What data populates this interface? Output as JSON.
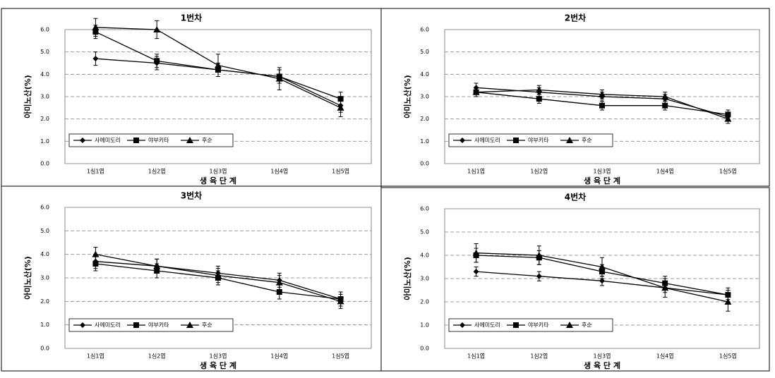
{
  "chart_data": [
    {
      "type": "line",
      "title": "1번차",
      "x_label": "생 육 단 계",
      "y_label": "아미노산(%)",
      "categories": [
        "1심1엽",
        "1심2엽",
        "1심3엽",
        "1심4엽",
        "1심5엽"
      ],
      "ylim": [
        0,
        6
      ],
      "yticks": [
        {
          "value": 0,
          "label": "0.0"
        },
        {
          "value": 1,
          "label": "1.0"
        },
        {
          "value": 2,
          "label": "2.0"
        },
        {
          "value": 3,
          "label": "3.0"
        },
        {
          "value": 4,
          "label": "4.0"
        },
        {
          "value": 5,
          "label": "5.0"
        },
        {
          "value": 6,
          "label": "6.0"
        }
      ],
      "grid": true,
      "series": [
        {
          "name": "사에미도리",
          "color": "#000000",
          "marker": "diamond",
          "values": [
            4.7,
            4.5,
            4.2,
            3.9,
            2.6
          ],
          "errors": [
            0.3,
            0.3,
            0.3,
            0.3,
            0.3
          ]
        },
        {
          "name": "야부키타",
          "color": "#000000",
          "marker": "square",
          "values": [
            5.9,
            4.6,
            4.2,
            3.9,
            2.9
          ],
          "errors": [
            0.3,
            0.3,
            0.3,
            0.3,
            0.3
          ]
        },
        {
          "name": "후순",
          "color": "#000000",
          "marker": "triangle",
          "values": [
            6.1,
            6.0,
            4.4,
            3.8,
            2.5
          ],
          "errors": [
            0.4,
            0.4,
            0.5,
            0.5,
            0.4
          ]
        }
      ]
    },
    {
      "type": "line",
      "title": "2번차",
      "x_label": "생 육 단 계",
      "y_label": "아미노산(%)",
      "categories": [
        "1심1엽",
        "1심2엽",
        "1심3엽",
        "1심4엽",
        "1심5엽"
      ],
      "ylim": [
        0,
        6
      ],
      "yticks": [
        {
          "value": 0,
          "label": "0.0"
        },
        {
          "value": 1,
          "label": "1.0"
        },
        {
          "value": 2,
          "label": "2.0"
        },
        {
          "value": 3,
          "label": "3.0"
        },
        {
          "value": 4,
          "label": "4.0"
        },
        {
          "value": 5,
          "label": "5.0"
        },
        {
          "value": 6,
          "label": "6.0"
        }
      ],
      "grid": true,
      "series": [
        {
          "name": "사에미도리",
          "color": "#000000",
          "marker": "diamond",
          "values": [
            3.4,
            3.2,
            3.0,
            2.9,
            2.1
          ],
          "errors": [
            0.2,
            0.2,
            0.2,
            0.2,
            0.2
          ]
        },
        {
          "name": "야부키타",
          "color": "#000000",
          "marker": "square",
          "values": [
            3.2,
            2.9,
            2.6,
            2.6,
            2.2
          ],
          "errors": [
            0.2,
            0.2,
            0.2,
            0.2,
            0.2
          ]
        },
        {
          "name": "후순",
          "color": "#000000",
          "marker": "triangle",
          "values": [
            3.2,
            3.3,
            3.1,
            3.0,
            2.0
          ],
          "errors": [
            0.2,
            0.2,
            0.2,
            0.2,
            0.2
          ]
        }
      ]
    },
    {
      "type": "line",
      "title": "3번차",
      "x_label": "생 육 단 계",
      "y_label": "아미노산(%)",
      "categories": [
        "1심1엽",
        "1심2엽",
        "1심3엽",
        "1심4엽",
        "1심5엽"
      ],
      "ylim": [
        0,
        6
      ],
      "yticks": [
        {
          "value": 0,
          "label": "0.0"
        },
        {
          "value": 1,
          "label": "1.0"
        },
        {
          "value": 2,
          "label": "2.0"
        },
        {
          "value": 3,
          "label": "3.0"
        },
        {
          "value": 4,
          "label": "4.0"
        },
        {
          "value": 5,
          "label": "5.0"
        },
        {
          "value": 6,
          "label": "6.0"
        }
      ],
      "grid": true,
      "series": [
        {
          "name": "사에미도리",
          "color": "#000000",
          "marker": "diamond",
          "values": [
            3.7,
            3.5,
            3.2,
            2.9,
            2.1
          ],
          "errors": [
            0.3,
            0.3,
            0.3,
            0.3,
            0.3
          ]
        },
        {
          "name": "야부키타",
          "color": "#000000",
          "marker": "square",
          "values": [
            3.6,
            3.3,
            3.0,
            2.4,
            2.1
          ],
          "errors": [
            0.3,
            0.3,
            0.3,
            0.3,
            0.3
          ]
        },
        {
          "name": "후순",
          "color": "#000000",
          "marker": "triangle",
          "values": [
            4.0,
            3.5,
            3.1,
            2.8,
            2.0
          ],
          "errors": [
            0.3,
            0.3,
            0.3,
            0.3,
            0.3
          ]
        }
      ]
    },
    {
      "type": "line",
      "title": "4번차",
      "x_label": "생 육 단 계",
      "y_label": "아미노산(%)",
      "categories": [
        "1심1엽",
        "1심2엽",
        "1심3엽",
        "1심4엽",
        "1심5엽"
      ],
      "ylim": [
        0,
        6
      ],
      "yticks": [
        {
          "value": 0,
          "label": "0.0"
        },
        {
          "value": 1,
          "label": "1.0"
        },
        {
          "value": 2,
          "label": "2.0"
        },
        {
          "value": 3,
          "label": "3.0"
        },
        {
          "value": 4,
          "label": "4.0"
        },
        {
          "value": 5,
          "label": "5.0"
        },
        {
          "value": 6,
          "label": "6.0"
        }
      ],
      "grid": true,
      "series": [
        {
          "name": "사에미도리",
          "color": "#000000",
          "marker": "diamond",
          "values": [
            3.3,
            3.1,
            2.9,
            2.6,
            2.3
          ],
          "errors": [
            0.2,
            0.2,
            0.2,
            0.2,
            0.2
          ]
        },
        {
          "name": "야부키타",
          "color": "#000000",
          "marker": "square",
          "values": [
            4.0,
            3.9,
            3.3,
            2.8,
            2.3
          ],
          "errors": [
            0.3,
            0.3,
            0.3,
            0.3,
            0.3
          ]
        },
        {
          "name": "후순",
          "color": "#000000",
          "marker": "triangle",
          "values": [
            4.1,
            4.0,
            3.5,
            2.6,
            2.0
          ],
          "errors": [
            0.4,
            0.4,
            0.4,
            0.4,
            0.4
          ]
        }
      ]
    }
  ]
}
